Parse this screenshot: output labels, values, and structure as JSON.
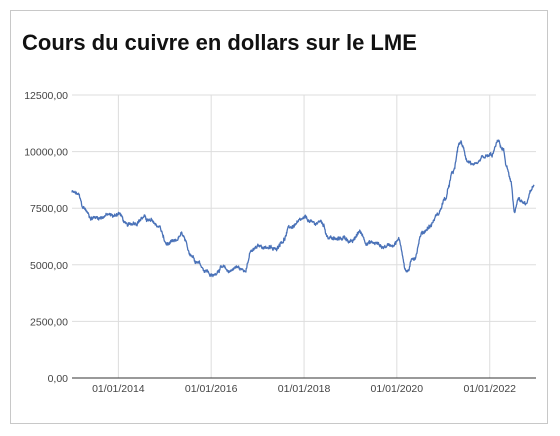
{
  "title": "Cours du cuivre en dollars sur le LME",
  "colors": {
    "line": "#4a72b8",
    "grid": "#dddddd",
    "axis": "#333333",
    "text": "#444444",
    "border": "#c8c8c8"
  },
  "chart_data": {
    "type": "line",
    "title": "Cours du cuivre en dollars sur le LME",
    "xlabel": "",
    "ylabel": "",
    "ylim": [
      0,
      12500
    ],
    "xlim": [
      "2013-01-01",
      "2022-12-31"
    ],
    "y_ticks": [
      {
        "value": 0,
        "label": "0,00"
      },
      {
        "value": 2500,
        "label": "2500,00"
      },
      {
        "value": 5000,
        "label": "5000,00"
      },
      {
        "value": 7500,
        "label": "7500,00"
      },
      {
        "value": 10000,
        "label": "10000,00"
      },
      {
        "value": 12500,
        "label": "12500,00"
      }
    ],
    "x_ticks": [
      {
        "value": "2014-01-01",
        "label": "01/01/2014"
      },
      {
        "value": "2016-01-01",
        "label": "01/01/2016"
      },
      {
        "value": "2018-01-01",
        "label": "01/01/2018"
      },
      {
        "value": "2020-01-01",
        "label": "01/01/2020"
      },
      {
        "value": "2022-01-01",
        "label": "01/01/2022"
      }
    ],
    "grid": true,
    "series": [
      {
        "points": [
          [
            "2013-01-01",
            8200
          ],
          [
            "2013-02-15",
            8100
          ],
          [
            "2013-04-01",
            7500
          ],
          [
            "2013-06-01",
            7100
          ],
          [
            "2013-08-01",
            7100
          ],
          [
            "2013-10-01",
            7200
          ],
          [
            "2013-12-01",
            7150
          ],
          [
            "2014-01-01",
            7300
          ],
          [
            "2014-03-15",
            6700
          ],
          [
            "2014-05-15",
            6900
          ],
          [
            "2014-07-15",
            7100
          ],
          [
            "2014-09-15",
            6900
          ],
          [
            "2014-11-15",
            6700
          ],
          [
            "2015-01-15",
            5900
          ],
          [
            "2015-03-15",
            5950
          ],
          [
            "2015-05-15",
            6300
          ],
          [
            "2015-07-15",
            5500
          ],
          [
            "2015-09-15",
            5200
          ],
          [
            "2015-11-15",
            4800
          ],
          [
            "2016-01-15",
            4500
          ],
          [
            "2016-03-15",
            4900
          ],
          [
            "2016-05-15",
            4700
          ],
          [
            "2016-07-15",
            4900
          ],
          [
            "2016-09-15",
            4750
          ],
          [
            "2016-11-15",
            5600
          ],
          [
            "2017-01-15",
            5800
          ],
          [
            "2017-03-15",
            5800
          ],
          [
            "2017-05-15",
            5650
          ],
          [
            "2017-07-15",
            6100
          ],
          [
            "2017-09-15",
            6650
          ],
          [
            "2017-11-15",
            6850
          ],
          [
            "2018-01-15",
            7000
          ],
          [
            "2018-03-15",
            6800
          ],
          [
            "2018-05-15",
            6900
          ],
          [
            "2018-07-15",
            6250
          ],
          [
            "2018-09-15",
            6100
          ],
          [
            "2018-11-15",
            6200
          ],
          [
            "2019-01-15",
            6000
          ],
          [
            "2019-03-15",
            6450
          ],
          [
            "2019-05-15",
            6000
          ],
          [
            "2019-07-15",
            5950
          ],
          [
            "2019-09-15",
            5800
          ],
          [
            "2019-11-15",
            5900
          ],
          [
            "2020-01-15",
            6100
          ],
          [
            "2020-03-20",
            4700
          ],
          [
            "2020-05-15",
            5300
          ],
          [
            "2020-07-15",
            6400
          ],
          [
            "2020-09-15",
            6700
          ],
          [
            "2020-11-15",
            7200
          ],
          [
            "2021-01-15",
            7900
          ],
          [
            "2021-03-15",
            9000
          ],
          [
            "2021-05-12",
            10400
          ],
          [
            "2021-07-15",
            9600
          ],
          [
            "2021-09-15",
            9300
          ],
          [
            "2021-11-15",
            9700
          ],
          [
            "2022-01-15",
            9800
          ],
          [
            "2022-03-07",
            10400
          ],
          [
            "2022-04-15",
            10100
          ],
          [
            "2022-05-15",
            9300
          ],
          [
            "2022-06-15",
            8600
          ],
          [
            "2022-07-15",
            7400
          ],
          [
            "2022-08-15",
            7900
          ],
          [
            "2022-09-15",
            7700
          ],
          [
            "2022-10-15",
            7600
          ],
          [
            "2022-11-15",
            8200
          ],
          [
            "2022-12-15",
            8400
          ]
        ]
      }
    ]
  }
}
